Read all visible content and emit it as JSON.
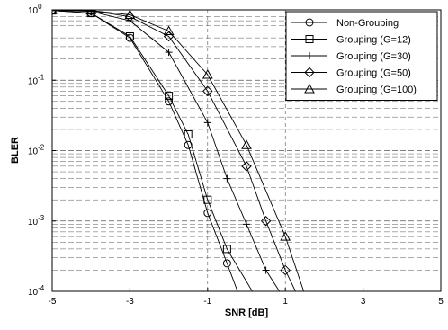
{
  "chart_data": {
    "type": "line",
    "xlabel": "SNR [dB]",
    "ylabel": "BLER",
    "xlim": [
      -5,
      5
    ],
    "ylim": [
      0.0001,
      1
    ],
    "yscale": "log",
    "xticks": [
      -5,
      -3,
      -1,
      1,
      3,
      5
    ],
    "xtick_labels": [
      "-5",
      "-3",
      "-1",
      "1",
      "3",
      "5"
    ],
    "yticks": [
      1,
      0.1,
      0.01,
      0.001,
      0.0001
    ],
    "ytick_labels": [
      {
        "base": "10",
        "exp": "0"
      },
      {
        "base": "10",
        "exp": "-1"
      },
      {
        "base": "10",
        "exp": "-2"
      },
      {
        "base": "10",
        "exp": "-3"
      },
      {
        "base": "10",
        "exp": "-4"
      }
    ],
    "grid": true,
    "legend_position": "top-right",
    "series": [
      {
        "name": "Non-Grouping",
        "marker": "circle",
        "x": [
          -5,
          -4,
          -3,
          -2,
          -1.5,
          -1,
          -0.5,
          -0.2
        ],
        "y": [
          0.98,
          0.9,
          0.4,
          0.05,
          0.012,
          0.0013,
          0.00025,
          9e-05
        ]
      },
      {
        "name": "Grouping (G=12)",
        "marker": "square",
        "x": [
          -5,
          -4,
          -3,
          -2,
          -1.5,
          -1,
          -0.5,
          0.2
        ],
        "y": [
          0.98,
          0.9,
          0.42,
          0.06,
          0.017,
          0.002,
          0.0004,
          9e-05
        ]
      },
      {
        "name": "Grouping (G=30)",
        "marker": "plus",
        "x": [
          -5,
          -4,
          -3,
          -2,
          -1,
          -0.5,
          0,
          0.5,
          0.9
        ],
        "y": [
          0.99,
          0.95,
          0.7,
          0.25,
          0.025,
          0.004,
          0.0009,
          0.0002,
          9e-05
        ]
      },
      {
        "name": "Grouping (G=50)",
        "marker": "diamond",
        "x": [
          -5,
          -4,
          -3,
          -2,
          -1,
          0,
          0.5,
          1,
          1.3
        ],
        "y": [
          0.99,
          0.97,
          0.8,
          0.42,
          0.07,
          0.006,
          0.001,
          0.0002,
          9e-05
        ]
      },
      {
        "name": "Grouping (G=100)",
        "marker": "triangle",
        "x": [
          -5,
          -4,
          -3,
          -2,
          -1,
          0,
          1,
          1.5
        ],
        "y": [
          1.0,
          0.98,
          0.85,
          0.5,
          0.12,
          0.012,
          0.0006,
          9e-05
        ]
      }
    ]
  }
}
